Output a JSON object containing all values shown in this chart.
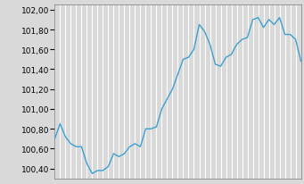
{
  "y_values": [
    100.7,
    100.85,
    100.72,
    100.65,
    100.62,
    100.62,
    100.45,
    100.35,
    100.38,
    100.38,
    100.42,
    100.55,
    100.52,
    100.55,
    100.62,
    100.65,
    100.62,
    100.8,
    100.8,
    100.82,
    101.0,
    101.1,
    101.2,
    101.35,
    101.5,
    101.52,
    101.6,
    101.85,
    101.78,
    101.65,
    101.45,
    101.43,
    101.52,
    101.55,
    101.65,
    101.7,
    101.72,
    101.9,
    101.92,
    101.82,
    101.9,
    101.85,
    101.92,
    101.75,
    101.75,
    101.7,
    101.48
  ],
  "ylim_min": 100.3,
  "ylim_max": 102.05,
  "ytick_values": [
    100.4,
    100.6,
    100.8,
    101.0,
    101.2,
    101.4,
    101.6,
    101.8,
    102.0
  ],
  "ytick_labels": [
    "100,40",
    "100,60",
    "100,80",
    "101,00",
    "101,20",
    "101,40",
    "101,60",
    "101,80",
    "102,00"
  ],
  "line_color": "#3ca0d0",
  "bg_color": "#d9d9d9",
  "grid_color": "#ffffff",
  "line_width": 1.0,
  "num_vgrid_lines": 46
}
